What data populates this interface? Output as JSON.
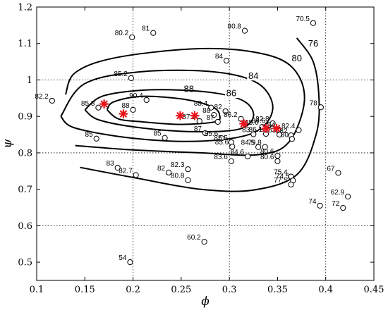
{
  "chart_data": {
    "type": "scatter",
    "xlabel": "ϕ",
    "ylabel": "ψ",
    "xlim": [
      0.1,
      0.45
    ],
    "ylim": [
      0.45,
      1.2
    ],
    "xticks": [
      0.1,
      0.15,
      0.2,
      0.25,
      0.3,
      0.35,
      0.4,
      0.45
    ],
    "xtick_labels": [
      "0.1",
      "0.15",
      "0.2",
      "0.25",
      "0.3",
      "0.35",
      "0.4",
      "0.45"
    ],
    "yticks": [
      0.5,
      0.6,
      0.7,
      0.8,
      0.9,
      1.0,
      1.1,
      1.2
    ],
    "ytick_labels": [
      "0.5",
      "0.6",
      "0.7",
      "0.8",
      "0.9",
      "1",
      "1.1",
      "1.2"
    ],
    "grid": {
      "x": [
        0.2,
        0.3,
        0.4
      ],
      "y": [
        0.6,
        0.8,
        1.0
      ],
      "style": "dotted"
    },
    "colors": {
      "axis": "#000000",
      "grid": "#000000",
      "star": "#e8141c",
      "contour": "#000000"
    },
    "points": [
      {
        "x": 0.199,
        "y": 1.117,
        "label": "80.2"
      },
      {
        "x": 0.221,
        "y": 1.129,
        "label": "81"
      },
      {
        "x": 0.316,
        "y": 1.135,
        "label": "80.8"
      },
      {
        "x": 0.387,
        "y": 1.156,
        "label": "70.5"
      },
      {
        "x": 0.297,
        "y": 1.053,
        "label": "84"
      },
      {
        "x": 0.198,
        "y": 1.005,
        "label": "85.2"
      },
      {
        "x": 0.116,
        "y": 0.943,
        "label": "82.2"
      },
      {
        "x": 0.164,
        "y": 0.924,
        "label": "85.8"
      },
      {
        "x": 0.2,
        "y": 0.918,
        "label": "88"
      },
      {
        "x": 0.214,
        "y": 0.945,
        "label": "90.4"
      },
      {
        "x": 0.281,
        "y": 0.924,
        "label": "88.4"
      },
      {
        "x": 0.284,
        "y": 0.904,
        "label": "88"
      },
      {
        "x": 0.296,
        "y": 0.914,
        "label": "82"
      },
      {
        "x": 0.269,
        "y": 0.887,
        "label": "87.1"
      },
      {
        "x": 0.288,
        "y": 0.885,
        "label": "87"
      },
      {
        "x": 0.312,
        "y": 0.893,
        "label": "86.2"
      },
      {
        "x": 0.275,
        "y": 0.854,
        "label": "87"
      },
      {
        "x": 0.292,
        "y": 0.84,
        "label": "85.6"
      },
      {
        "x": 0.233,
        "y": 0.841,
        "label": "85"
      },
      {
        "x": 0.162,
        "y": 0.839,
        "label": "85"
      },
      {
        "x": 0.302,
        "y": 0.829,
        "label": "85.5"
      },
      {
        "x": 0.303,
        "y": 0.817,
        "label": "85.6"
      },
      {
        "x": 0.325,
        "y": 0.851,
        "label": "83"
      },
      {
        "x": 0.334,
        "y": 0.871,
        "label": "85.6"
      },
      {
        "x": 0.341,
        "y": 0.876,
        "label": "84.6"
      },
      {
        "x": 0.345,
        "y": 0.881,
        "label": "82.8"
      },
      {
        "x": 0.351,
        "y": 0.864,
        "label": "84"
      },
      {
        "x": 0.338,
        "y": 0.852,
        "label": "86.1"
      },
      {
        "x": 0.352,
        "y": 0.85,
        "label": "83"
      },
      {
        "x": 0.364,
        "y": 0.848,
        "label": "82"
      },
      {
        "x": 0.372,
        "y": 0.862,
        "label": "82.4"
      },
      {
        "x": 0.365,
        "y": 0.838,
        "label": "80"
      },
      {
        "x": 0.395,
        "y": 0.925,
        "label": "78"
      },
      {
        "x": 0.33,
        "y": 0.816,
        "label": "84.5"
      },
      {
        "x": 0.337,
        "y": 0.816,
        "label": "79.8"
      },
      {
        "x": 0.319,
        "y": 0.79,
        "label": "84.6"
      },
      {
        "x": 0.302,
        "y": 0.777,
        "label": "83.6"
      },
      {
        "x": 0.35,
        "y": 0.792,
        "label": "80.6"
      },
      {
        "x": 0.35,
        "y": 0.777,
        "label": "80.6"
      },
      {
        "x": 0.364,
        "y": 0.735,
        "label": "75.4"
      },
      {
        "x": 0.366,
        "y": 0.724,
        "label": "74.5"
      },
      {
        "x": 0.364,
        "y": 0.713,
        "label": "77.5"
      },
      {
        "x": 0.184,
        "y": 0.759,
        "label": "83"
      },
      {
        "x": 0.203,
        "y": 0.739,
        "label": "82.7"
      },
      {
        "x": 0.237,
        "y": 0.746,
        "label": "82"
      },
      {
        "x": 0.257,
        "y": 0.755,
        "label": "82.3"
      },
      {
        "x": 0.257,
        "y": 0.725,
        "label": "80.8"
      },
      {
        "x": 0.413,
        "y": 0.745,
        "label": "67"
      },
      {
        "x": 0.423,
        "y": 0.68,
        "label": "62.9"
      },
      {
        "x": 0.418,
        "y": 0.649,
        "label": "72"
      },
      {
        "x": 0.394,
        "y": 0.655,
        "label": "74"
      },
      {
        "x": 0.274,
        "y": 0.556,
        "label": "60.2"
      },
      {
        "x": 0.197,
        "y": 0.5,
        "label": "54"
      }
    ],
    "optimal_points": [
      {
        "x": 0.17,
        "y": 0.934
      },
      {
        "x": 0.19,
        "y": 0.907
      },
      {
        "x": 0.249,
        "y": 0.902
      },
      {
        "x": 0.264,
        "y": 0.902
      },
      {
        "x": 0.315,
        "y": 0.88
      },
      {
        "x": 0.338,
        "y": 0.867
      },
      {
        "x": 0.349,
        "y": 0.867
      }
    ],
    "contours": [
      {
        "level": "88",
        "label_at": [
          0.258,
          0.976
        ],
        "path": [
          [
            0.173,
            0.918
          ],
          [
            0.185,
            0.893
          ],
          [
            0.21,
            0.885
          ],
          [
            0.25,
            0.878
          ],
          [
            0.285,
            0.885
          ],
          [
            0.29,
            0.902
          ],
          [
            0.283,
            0.925
          ],
          [
            0.255,
            0.946
          ],
          [
            0.21,
            0.955
          ],
          [
            0.18,
            0.94
          ],
          [
            0.173,
            0.918
          ]
        ]
      },
      {
        "level": "86",
        "label_at": [
          0.302,
          0.964
        ],
        "path": [
          [
            0.15,
            0.918
          ],
          [
            0.165,
            0.89
          ],
          [
            0.21,
            0.868
          ],
          [
            0.265,
            0.858
          ],
          [
            0.31,
            0.865
          ],
          [
            0.325,
            0.9
          ],
          [
            0.315,
            0.942
          ],
          [
            0.28,
            0.966
          ],
          [
            0.22,
            0.973
          ],
          [
            0.17,
            0.957
          ],
          [
            0.15,
            0.918
          ]
        ]
      },
      {
        "level": "84",
        "label_at": [
          0.325,
          1.012
        ],
        "path": [
          [
            0.125,
            0.9
          ],
          [
            0.14,
            0.868
          ],
          [
            0.2,
            0.84
          ],
          [
            0.27,
            0.832
          ],
          [
            0.325,
            0.855
          ],
          [
            0.345,
            0.92
          ],
          [
            0.33,
            0.99
          ],
          [
            0.285,
            1.022
          ],
          [
            0.21,
            1.023
          ],
          [
            0.15,
            0.99
          ],
          [
            0.125,
            0.9
          ]
        ]
      },
      {
        "level": "80",
        "label_at": [
          0.37,
          1.06
        ],
        "path": [
          [
            0.14,
            0.82
          ],
          [
            0.2,
            0.808
          ],
          [
            0.27,
            0.8
          ],
          [
            0.33,
            0.795
          ],
          [
            0.362,
            0.83
          ],
          [
            0.378,
            0.95
          ],
          [
            0.363,
            1.04
          ],
          [
            0.322,
            1.078
          ],
          [
            0.26,
            1.085
          ],
          [
            0.18,
            1.06
          ],
          [
            0.14,
            1.02
          ],
          [
            0.13,
            0.96
          ]
        ]
      },
      {
        "level": "76",
        "label_at": [
          0.387,
          1.1
        ],
        "path": [
          [
            0.145,
            0.76
          ],
          [
            0.205,
            0.73
          ],
          [
            0.27,
            0.7
          ],
          [
            0.325,
            0.698
          ],
          [
            0.37,
            0.74
          ],
          [
            0.39,
            0.85
          ],
          [
            0.393,
            0.95
          ],
          [
            0.387,
            1.05
          ],
          [
            0.37,
            1.115
          ]
        ]
      }
    ]
  }
}
